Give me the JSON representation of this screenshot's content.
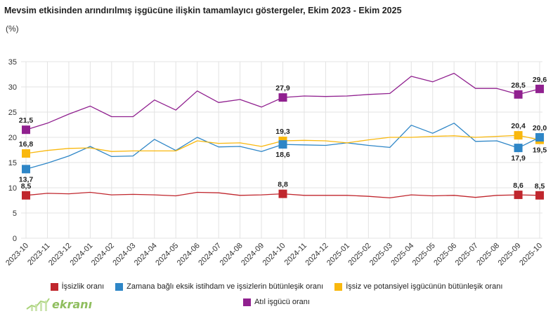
{
  "chart_data": {
    "type": "line",
    "title": "Mevsim etkisinden arındırılmış işgücüne ilişkin tamamlayıcı göstergeler, Ekim 2023 - Ekim 2025",
    "ylabel": "(%)",
    "xlabel": "",
    "ylim": [
      0,
      35
    ],
    "yticks": [
      0,
      5,
      10,
      15,
      20,
      25,
      30,
      35
    ],
    "grid": true,
    "legend": "bottom",
    "categories": [
      "2023-10",
      "2023-11",
      "2023-12",
      "2024-01",
      "2024-02",
      "2024-03",
      "2024-04",
      "2024-05",
      "2024-06",
      "2024-07",
      "2024-08",
      "2024-09",
      "2024-10",
      "2024-11",
      "2024-12",
      "2025-01",
      "2025-02",
      "2025-03",
      "2025-04",
      "2025-05",
      "2025-06",
      "2025-07",
      "2025-08",
      "2025-09",
      "2025-10"
    ],
    "series": [
      {
        "name": "İşsizlik oranı",
        "color": "#c0262d",
        "values": [
          8.5,
          8.9,
          8.8,
          9.1,
          8.6,
          8.7,
          8.6,
          8.4,
          9.1,
          9.0,
          8.5,
          8.6,
          8.8,
          8.5,
          8.5,
          8.5,
          8.3,
          8.0,
          8.6,
          8.4,
          8.5,
          8.1,
          8.5,
          8.6,
          8.5
        ]
      },
      {
        "name": "Zamana bağlı eksik istihdam ve işsizlerin bütünleşik oranı",
        "color": "#2e86c7",
        "values": [
          13.7,
          14.9,
          16.3,
          18.2,
          16.2,
          16.3,
          19.6,
          17.4,
          20.0,
          18.1,
          18.2,
          17.2,
          18.6,
          18.5,
          18.4,
          18.9,
          18.4,
          18.0,
          22.4,
          20.8,
          22.8,
          19.2,
          19.3,
          17.9,
          20.0
        ]
      },
      {
        "name": "İşsiz ve potansiyel işgücünün bütünleşik oranı",
        "color": "#f9b80e",
        "values": [
          16.8,
          17.4,
          17.8,
          17.9,
          17.2,
          17.3,
          17.3,
          17.3,
          19.3,
          18.8,
          18.9,
          18.2,
          19.3,
          19.4,
          19.3,
          18.9,
          19.5,
          20.0,
          20.0,
          20.2,
          20.3,
          20.0,
          20.2,
          20.4,
          19.5
        ]
      },
      {
        "name": "Atıl işgücü oranı",
        "color": "#90208f",
        "values": [
          21.5,
          22.8,
          24.6,
          26.2,
          24.1,
          24.1,
          27.4,
          25.4,
          29.2,
          26.9,
          27.5,
          26.0,
          27.9,
          28.2,
          28.1,
          28.2,
          28.5,
          28.7,
          32.1,
          31.0,
          32.7,
          29.7,
          29.7,
          28.5,
          29.6
        ]
      }
    ],
    "data_labels": [
      {
        "series": 0,
        "x": "2023-10",
        "text": "8,5"
      },
      {
        "series": 1,
        "x": "2023-10",
        "text": "13,7"
      },
      {
        "series": 2,
        "x": "2023-10",
        "text": "16,8"
      },
      {
        "series": 3,
        "x": "2023-10",
        "text": "21,5"
      },
      {
        "series": 0,
        "x": "2024-10",
        "text": "8,8"
      },
      {
        "series": 1,
        "x": "2024-10",
        "text": "18,6"
      },
      {
        "series": 2,
        "x": "2024-10",
        "text": "19,3"
      },
      {
        "series": 3,
        "x": "2024-10",
        "text": "27,9"
      },
      {
        "series": 0,
        "x": "2025-09",
        "text": "8,6"
      },
      {
        "series": 1,
        "x": "2025-09",
        "text": "17,9"
      },
      {
        "series": 2,
        "x": "2025-09",
        "text": "20,4"
      },
      {
        "series": 3,
        "x": "2025-09",
        "text": "28,5"
      },
      {
        "series": 0,
        "x": "2025-10",
        "text": "8,5"
      },
      {
        "series": 1,
        "x": "2025-10",
        "text": "20,0"
      },
      {
        "series": 2,
        "x": "2025-10",
        "text": "19,5"
      },
      {
        "series": 3,
        "x": "2025-10",
        "text": "29,6"
      }
    ]
  },
  "logo": {
    "text": "ekranı",
    "icon": "chart-candles-icon"
  }
}
